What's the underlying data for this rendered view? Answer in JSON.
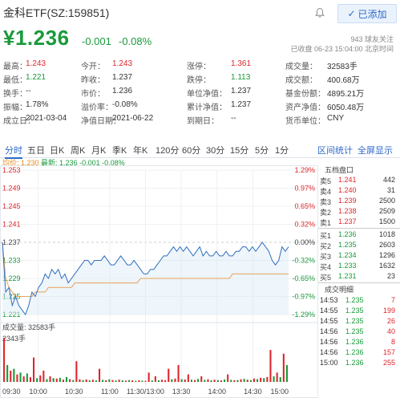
{
  "header": {
    "title": "金科ETF(SZ:159851)",
    "added_label": "已添加",
    "price": "¥1.236",
    "change": "-0.001",
    "change_pct": "-0.08%",
    "fans": "943 球友关注",
    "closed": "已收盘 06-23 15:04:00 北京时间"
  },
  "stats": [
    [
      {
        "label": "最高：",
        "value": "1.243",
        "color": "red"
      },
      {
        "label": "今开：",
        "value": "1.243",
        "color": "red"
      },
      {
        "label": "涨停：",
        "value": "1.361",
        "color": "red"
      },
      {
        "label": "成交量：",
        "value": "32583手",
        "color": ""
      }
    ],
    [
      {
        "label": "最低：",
        "value": "1.221",
        "color": "green"
      },
      {
        "label": "昨收：",
        "value": "1.237",
        "color": ""
      },
      {
        "label": "跌停：",
        "value": "1.113",
        "color": "green"
      },
      {
        "label": "成交额：",
        "value": "400.68万",
        "color": ""
      }
    ],
    [
      {
        "label": "换手：",
        "value": "--",
        "color": ""
      },
      {
        "label": "市价：",
        "value": "1.236",
        "color": ""
      },
      {
        "label": "单位净值：",
        "value": "1.237",
        "color": ""
      },
      {
        "label": "基金份额：",
        "value": "4895.21万",
        "color": ""
      }
    ],
    [
      {
        "label": "振幅：",
        "value": "1.78%",
        "color": ""
      },
      {
        "label": "溢价率：",
        "value": "-0.08%",
        "color": ""
      },
      {
        "label": "累计净值：",
        "value": "1.237",
        "color": ""
      },
      {
        "label": "资产净值：",
        "value": "6050.48万",
        "color": ""
      }
    ],
    [
      {
        "label": "成立日：",
        "value": "2021-03-04",
        "color": ""
      },
      {
        "label": "净值日期：",
        "value": "2021-06-22",
        "color": ""
      },
      {
        "label": "到期日：",
        "value": "--",
        "color": ""
      },
      {
        "label": "货币单位：",
        "value": "CNY",
        "color": ""
      }
    ]
  ],
  "tabs": [
    "分时",
    "五日",
    "日K",
    "周K",
    "月K",
    "季K",
    "年K",
    "120分",
    "60分",
    "30分",
    "15分",
    "5分",
    "1分"
  ],
  "tabs_right": [
    "区间统计",
    "全屏显示"
  ],
  "legend": {
    "avg": "均价: 1.230",
    "cur": "最新: 1.236 -0.001 -0.08%"
  },
  "chart_data": {
    "type": "line",
    "y_ticks_left": [
      "1.253",
      "1.249",
      "1.245",
      "1.241",
      "1.237",
      "1.233",
      "1.229",
      "1.225",
      "1.221"
    ],
    "y_ticks_right": [
      "1.29%",
      "0.97%",
      "0.65%",
      "0.32%",
      "0.00%",
      "-0.32%",
      "-0.65%",
      "-0.97%",
      "-1.29%"
    ],
    "ylim": [
      1.221,
      1.253
    ],
    "prev_close": 1.237,
    "x_ticks": [
      "09:30",
      "10:00",
      "10:30",
      "11:00",
      "11:30/13:00",
      "13:30",
      "14:00",
      "14:30",
      "15:00"
    ],
    "series": [
      {
        "name": "最新",
        "color": "#2f6fbf",
        "values": [
          1.237,
          1.226,
          1.227,
          1.223,
          1.225,
          1.223,
          1.222,
          1.221,
          1.223,
          1.226,
          1.225,
          1.227,
          1.228,
          1.23,
          1.229,
          1.231,
          1.23,
          1.231,
          1.229,
          1.23,
          1.228,
          1.229,
          1.23,
          1.231,
          1.232,
          1.233,
          1.233,
          1.232,
          1.233,
          1.233,
          1.233,
          1.234,
          1.233,
          1.232,
          1.232,
          1.233,
          1.234,
          1.233,
          1.232,
          1.232,
          1.233,
          1.232,
          1.231,
          1.23,
          1.23,
          1.231,
          1.231,
          1.232,
          1.233,
          1.234,
          1.234,
          1.235,
          1.236,
          1.235,
          1.236,
          1.235,
          1.236,
          1.235,
          1.234,
          1.235,
          1.236,
          1.234,
          1.235,
          1.234,
          1.234,
          1.235,
          1.234,
          1.234,
          1.235,
          1.234,
          1.234,
          1.235,
          1.235,
          1.236,
          1.236,
          1.235,
          1.236,
          1.235,
          1.236,
          1.237,
          1.236,
          1.235,
          1.233,
          1.232,
          1.233,
          1.236,
          1.235,
          1.236
        ]
      },
      {
        "name": "均价",
        "color": "#e8a25a",
        "values": [
          1.237,
          1.229,
          1.227,
          1.226,
          1.225,
          1.225,
          1.225,
          1.225,
          1.225,
          1.225,
          1.226,
          1.226,
          1.226,
          1.226,
          1.227,
          1.227,
          1.227,
          1.227,
          1.227,
          1.227,
          1.227,
          1.227,
          1.228,
          1.228,
          1.228,
          1.228,
          1.228,
          1.228,
          1.228,
          1.228,
          1.228,
          1.228,
          1.228,
          1.228,
          1.228,
          1.228,
          1.228,
          1.228,
          1.228,
          1.228,
          1.228,
          1.228,
          1.229,
          1.229,
          1.229,
          1.229,
          1.229,
          1.229,
          1.229,
          1.229,
          1.229,
          1.229,
          1.229,
          1.229,
          1.229,
          1.229,
          1.229,
          1.229,
          1.229,
          1.229,
          1.229,
          1.229,
          1.229,
          1.229,
          1.229,
          1.229,
          1.229,
          1.229,
          1.229,
          1.229,
          1.23,
          1.23,
          1.23,
          1.23,
          1.23,
          1.23,
          1.23,
          1.23,
          1.23,
          1.23,
          1.23,
          1.23,
          1.23,
          1.23,
          1.23,
          1.23,
          1.23,
          1.23
        ]
      }
    ],
    "volume_label": "成交量: 32583手",
    "volume_max_label": "2343手",
    "volume": [
      {
        "v": 2343,
        "c": "red"
      },
      {
        "v": 900,
        "c": "green"
      },
      {
        "v": 600,
        "c": "red"
      },
      {
        "v": 700,
        "c": "green"
      },
      {
        "v": 400,
        "c": "red"
      },
      {
        "v": 500,
        "c": "green"
      },
      {
        "v": 300,
        "c": "red"
      },
      {
        "v": 450,
        "c": "green"
      },
      {
        "v": 250,
        "c": "red"
      },
      {
        "v": 1300,
        "c": "red"
      },
      {
        "v": 200,
        "c": "green"
      },
      {
        "v": 350,
        "c": "red"
      },
      {
        "v": 600,
        "c": "red"
      },
      {
        "v": 150,
        "c": "green"
      },
      {
        "v": 300,
        "c": "red"
      },
      {
        "v": 200,
        "c": "green"
      },
      {
        "v": 180,
        "c": "red"
      },
      {
        "v": 220,
        "c": "green"
      },
      {
        "v": 120,
        "c": "red"
      },
      {
        "v": 260,
        "c": "green"
      },
      {
        "v": 150,
        "c": "red"
      },
      {
        "v": 100,
        "c": "green"
      },
      {
        "v": 1100,
        "c": "red"
      },
      {
        "v": 140,
        "c": "red"
      },
      {
        "v": 100,
        "c": "green"
      },
      {
        "v": 130,
        "c": "red"
      },
      {
        "v": 90,
        "c": "green"
      },
      {
        "v": 120,
        "c": "red"
      },
      {
        "v": 80,
        "c": "green"
      },
      {
        "v": 700,
        "c": "red"
      },
      {
        "v": 110,
        "c": "green"
      },
      {
        "v": 90,
        "c": "red"
      },
      {
        "v": 140,
        "c": "green"
      },
      {
        "v": 100,
        "c": "red"
      },
      {
        "v": 80,
        "c": "green"
      },
      {
        "v": 120,
        "c": "red"
      },
      {
        "v": 90,
        "c": "green"
      },
      {
        "v": 70,
        "c": "red"
      },
      {
        "v": 100,
        "c": "green"
      },
      {
        "v": 80,
        "c": "red"
      },
      {
        "v": 60,
        "c": "green"
      },
      {
        "v": 90,
        "c": "red"
      },
      {
        "v": 70,
        "c": "green"
      },
      {
        "v": 60,
        "c": "red"
      },
      {
        "v": 500,
        "c": "red"
      },
      {
        "v": 80,
        "c": "green"
      },
      {
        "v": 300,
        "c": "red"
      },
      {
        "v": 90,
        "c": "green"
      },
      {
        "v": 120,
        "c": "red"
      },
      {
        "v": 100,
        "c": "red"
      },
      {
        "v": 700,
        "c": "red"
      },
      {
        "v": 140,
        "c": "green"
      },
      {
        "v": 180,
        "c": "red"
      },
      {
        "v": 900,
        "c": "red"
      },
      {
        "v": 150,
        "c": "green"
      },
      {
        "v": 130,
        "c": "red"
      },
      {
        "v": 400,
        "c": "red"
      },
      {
        "v": 120,
        "c": "green"
      },
      {
        "v": 100,
        "c": "red"
      },
      {
        "v": 160,
        "c": "green"
      },
      {
        "v": 300,
        "c": "red"
      },
      {
        "v": 110,
        "c": "green"
      },
      {
        "v": 140,
        "c": "red"
      },
      {
        "v": 90,
        "c": "green"
      },
      {
        "v": 120,
        "c": "red"
      },
      {
        "v": 100,
        "c": "green"
      },
      {
        "v": 80,
        "c": "red"
      },
      {
        "v": 130,
        "c": "green"
      },
      {
        "v": 400,
        "c": "red"
      },
      {
        "v": 110,
        "c": "green"
      },
      {
        "v": 90,
        "c": "red"
      },
      {
        "v": 100,
        "c": "green"
      },
      {
        "v": 140,
        "c": "red"
      },
      {
        "v": 160,
        "c": "green"
      },
      {
        "v": 120,
        "c": "red"
      },
      {
        "v": 100,
        "c": "green"
      },
      {
        "v": 180,
        "c": "red"
      },
      {
        "v": 150,
        "c": "green"
      },
      {
        "v": 220,
        "c": "red"
      },
      {
        "v": 200,
        "c": "green"
      },
      {
        "v": 260,
        "c": "red"
      },
      {
        "v": 1700,
        "c": "red"
      },
      {
        "v": 300,
        "c": "green"
      },
      {
        "v": 500,
        "c": "red"
      },
      {
        "v": 250,
        "c": "green"
      },
      {
        "v": 1500,
        "c": "red"
      },
      {
        "v": 900,
        "c": "green"
      }
    ]
  },
  "orderbook": {
    "title": "五档盘口",
    "asks": [
      {
        "label": "卖5",
        "price": "1.241",
        "vol": "442",
        "color": "red"
      },
      {
        "label": "卖4",
        "price": "1.240",
        "vol": "31",
        "color": "red"
      },
      {
        "label": "卖3",
        "price": "1.239",
        "vol": "2500",
        "color": "red"
      },
      {
        "label": "卖2",
        "price": "1.238",
        "vol": "2509",
        "color": "red"
      },
      {
        "label": "卖1",
        "price": "1.237",
        "vol": "1500",
        "color": "red"
      }
    ],
    "bids": [
      {
        "label": "买1",
        "price": "1.236",
        "vol": "1018",
        "color": "green"
      },
      {
        "label": "买2",
        "price": "1.235",
        "vol": "2603",
        "color": "green"
      },
      {
        "label": "买3",
        "price": "1.234",
        "vol": "1296",
        "color": "green"
      },
      {
        "label": "买4",
        "price": "1.233",
        "vol": "1632",
        "color": "green"
      },
      {
        "label": "买5",
        "price": "1.231",
        "vol": "23",
        "color": "green"
      }
    ]
  },
  "trades": {
    "title": "成交明细",
    "rows": [
      {
        "time": "14:53",
        "price": "1.235",
        "vol": "7",
        "pcolor": "green",
        "vcolor": "red"
      },
      {
        "time": "14:55",
        "price": "1.235",
        "vol": "199",
        "pcolor": "green",
        "vcolor": "red"
      },
      {
        "time": "14:55",
        "price": "1.235",
        "vol": "26",
        "pcolor": "green",
        "vcolor": "red"
      },
      {
        "time": "14:56",
        "price": "1.235",
        "vol": "40",
        "pcolor": "green",
        "vcolor": "red"
      },
      {
        "time": "14:56",
        "price": "1.236",
        "vol": "8",
        "pcolor": "green",
        "vcolor": "red"
      },
      {
        "time": "14:56",
        "price": "1.236",
        "vol": "157",
        "pcolor": "green",
        "vcolor": "red"
      },
      {
        "time": "15:00",
        "price": "1.236",
        "vol": "255",
        "pcolor": "green",
        "vcolor": "red"
      }
    ]
  }
}
